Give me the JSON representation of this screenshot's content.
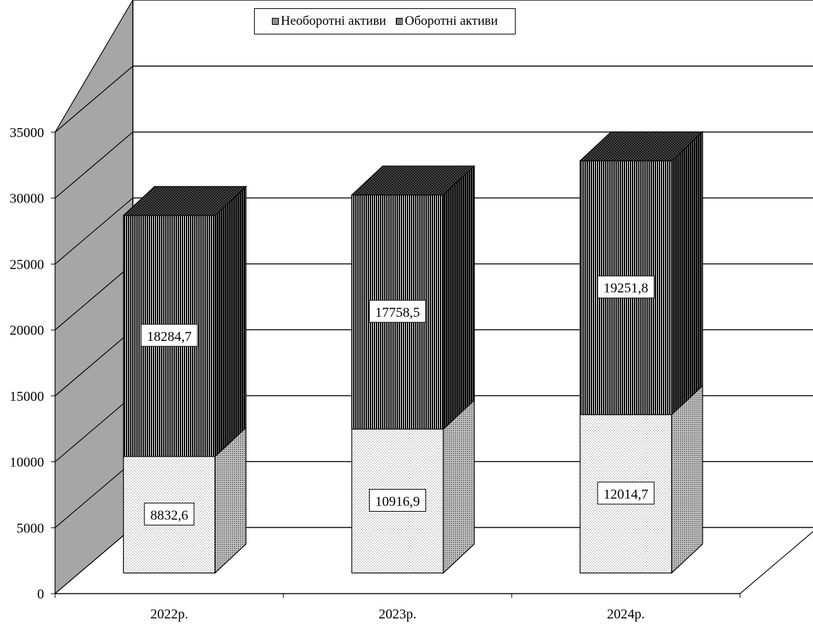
{
  "legend": {
    "series_1": "Необоротні активи",
    "series_2": "Оборотні активи"
  },
  "chart_data": {
    "type": "bar",
    "stacked": true,
    "three_d": true,
    "categories": [
      "2022р.",
      "2023р.",
      "2024р."
    ],
    "series": [
      {
        "name": "Необоротні активи",
        "values": [
          8832.6,
          10916.9,
          12014.7
        ],
        "labels": [
          "8832,6",
          "10916,9",
          "12014,7"
        ],
        "fill": "dotted"
      },
      {
        "name": "Оборотні активи",
        "values": [
          18284.7,
          17758.5,
          19251.8
        ],
        "labels": [
          "18284,7",
          "17758,5",
          "19251,8"
        ],
        "fill": "black-striped"
      }
    ],
    "y_ticks": [
      0,
      5000,
      10000,
      15000,
      20000,
      25000,
      30000,
      35000
    ],
    "ylim": [
      0,
      35000
    ],
    "grid": true,
    "legend_position": "top",
    "colors": {
      "wall": "#a6a6a6",
      "bar_dark": "#111111",
      "bar_light": "#ffffff"
    }
  }
}
